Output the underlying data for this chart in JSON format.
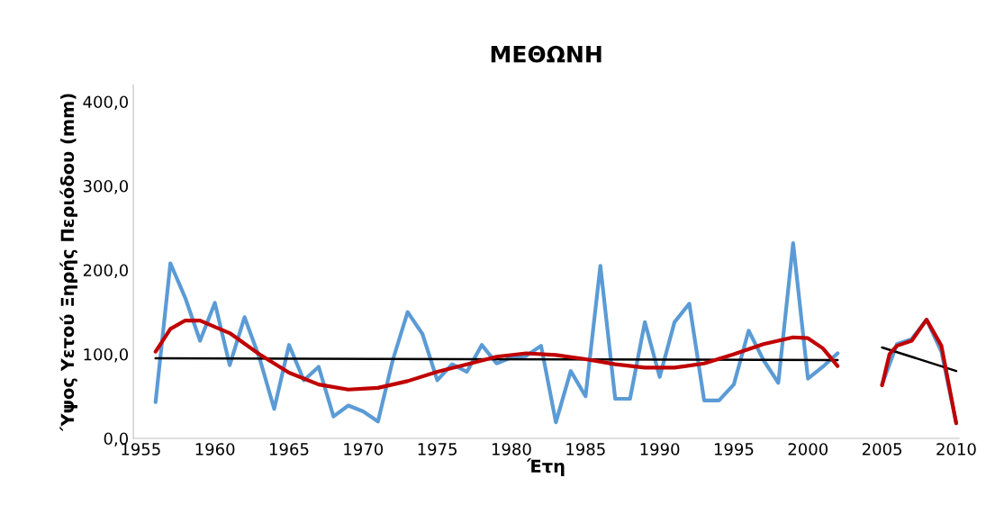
{
  "chart_data": {
    "type": "line",
    "title": "ΜΕΘΩΝΗ",
    "xlabel": "Έτη",
    "ylabel": "Ύψος Υετού Ξηρής Περιόδου (mm)",
    "xlim": [
      1954.5,
      2010.2
    ],
    "xticks": [
      1955,
      1960,
      1965,
      1970,
      1975,
      1980,
      1985,
      1990,
      1995,
      2000,
      2005,
      2010
    ],
    "ylim": [
      0,
      420
    ],
    "yticks": [
      {
        "value": 0,
        "label": "0,0"
      },
      {
        "value": 100,
        "label": "100,0"
      },
      {
        "value": 200,
        "label": "200,0"
      },
      {
        "value": 300,
        "label": "300,0"
      },
      {
        "value": 400,
        "label": "400,0"
      }
    ],
    "grid": false,
    "marker": "none",
    "line_style": "solid",
    "series": [
      {
        "color": "#5b9bd5",
        "x": [
          1956,
          1957,
          1958,
          1959,
          1960,
          1961,
          1962,
          1963,
          1964,
          1965,
          1966,
          1967,
          1968,
          1969,
          1970,
          1971,
          1972,
          1973,
          1974,
          1975,
          1976,
          1977,
          1978,
          1979,
          1980,
          1981,
          1982,
          1983,
          1984,
          1985,
          1986,
          1987,
          1988,
          1989,
          1990,
          1991,
          1992,
          1993,
          1994,
          1995,
          1996,
          1997,
          1998,
          1999,
          2000,
          2001,
          2002,
          2003,
          2004,
          2005,
          2006,
          2007,
          2008,
          2009,
          2010
        ],
        "values": [
          43,
          208,
          167,
          116,
          161,
          87,
          144,
          96,
          35,
          111,
          69,
          85,
          26,
          39,
          32,
          20,
          93,
          150,
          124,
          69,
          88,
          79,
          111,
          89,
          96,
          98,
          110,
          19,
          80,
          50,
          205,
          47,
          47,
          138,
          73,
          138,
          160,
          45,
          45,
          64,
          128,
          93,
          66,
          232,
          71,
          85,
          101,
          null,
          null,
          64,
          112,
          118,
          141,
          103,
          18
        ]
      },
      {
        "color": "#000000",
        "x": [
          1956,
          2002
        ],
        "values": [
          95,
          93
        ]
      },
      {
        "color": "#000000",
        "x": [
          2005,
          2010
        ],
        "values": [
          108,
          80
        ]
      },
      {
        "color": "#c00000",
        "x": [
          1956,
          1957,
          1958,
          1959,
          1961,
          1963,
          1965,
          1967,
          1969,
          1971,
          1973,
          1975,
          1977,
          1979,
          1981,
          1983,
          1985,
          1987,
          1989,
          1991,
          1993,
          1995,
          1997,
          1999,
          2000,
          2001,
          2002
        ],
        "values": [
          103,
          130,
          140,
          140,
          125,
          100,
          78,
          64,
          58,
          60,
          68,
          79,
          88,
          97,
          101,
          99,
          94,
          88,
          84,
          84,
          89,
          100,
          112,
          120,
          119,
          107,
          86
        ]
      },
      {
        "color": "#c00000",
        "x": [
          2005,
          2005.5,
          2006,
          2007,
          2008,
          2009,
          2010
        ],
        "values": [
          63,
          100,
          110,
          116,
          141,
          110,
          18
        ]
      }
    ]
  }
}
